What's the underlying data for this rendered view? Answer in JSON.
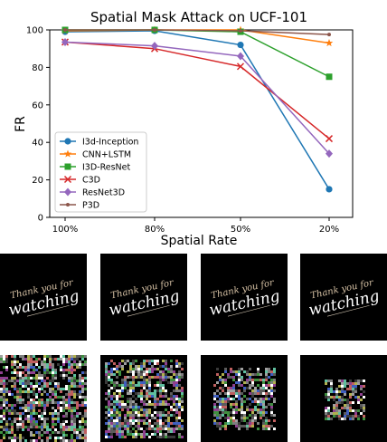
{
  "chart_data": {
    "type": "line",
    "title": "Spatial Mask Attack on UCF-101",
    "xlabel": "Spatial Rate",
    "ylabel": "FR",
    "categories": [
      "100%",
      "80%",
      "50%",
      "20%"
    ],
    "ylim": [
      0,
      100
    ],
    "yticks": [
      "0",
      "20",
      "40",
      "60",
      "80",
      "100"
    ],
    "legend_position": "lower-left",
    "grid": false,
    "series": [
      {
        "name": "I3d-Inception",
        "color": "#1f77b4",
        "marker": "circle",
        "values": [
          99,
          99.5,
          92,
          15
        ]
      },
      {
        "name": "CNN+LSTM",
        "color": "#ff7f0e",
        "marker": "star",
        "values": [
          99.5,
          100,
          100,
          93
        ]
      },
      {
        "name": "I3D-ResNet",
        "color": "#2ca02c",
        "marker": "square",
        "values": [
          100,
          100,
          99,
          75
        ]
      },
      {
        "name": "C3D",
        "color": "#d62728",
        "marker": "x",
        "values": [
          93.5,
          90,
          80.5,
          42
        ]
      },
      {
        "name": "ResNet3D",
        "color": "#9467bd",
        "marker": "diamond",
        "values": [
          93.5,
          91.5,
          86,
          34
        ]
      },
      {
        "name": "P3D",
        "color": "#8c564b",
        "marker": "point",
        "values": [
          100,
          100,
          99.5,
          97.5
        ]
      }
    ]
  },
  "thumbnails": {
    "caption_line1": "Thank you for",
    "caption_line2": "watching",
    "mask_levels": [
      1.0,
      0.8,
      0.5,
      0.2
    ]
  }
}
